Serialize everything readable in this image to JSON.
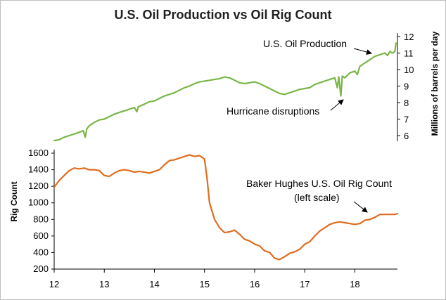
{
  "chart_data": {
    "type": "line",
    "title": "U.S. Oil Production vs Oil Rig Count",
    "x_ticks": [
      "12",
      "13",
      "14",
      "15",
      "16",
      "17",
      "18"
    ],
    "xlim": [
      2012,
      2018.85
    ],
    "left_axis": {
      "label": "Rig Count",
      "ylim": [
        200,
        1600
      ],
      "ticks": [
        "200",
        "400",
        "600",
        "800",
        "1000",
        "1200",
        "1400",
        "1600"
      ]
    },
    "right_axis": {
      "label": "Millions of barrels per day",
      "ylim": [
        5.5,
        12
      ],
      "ticks": [
        "6",
        "7",
        "8",
        "9",
        "10",
        "11",
        "12"
      ]
    },
    "series": [
      {
        "name": "U.S. Oil Production",
        "axis": "right",
        "color": "#7ab648",
        "x": [
          2012.0,
          2012.1,
          2012.2,
          2012.3,
          2012.4,
          2012.5,
          2012.58,
          2012.62,
          2012.65,
          2012.7,
          2012.8,
          2012.9,
          2013.0,
          2013.1,
          2013.2,
          2013.3,
          2013.4,
          2013.5,
          2013.6,
          2013.65,
          2013.68,
          2013.72,
          2013.8,
          2013.9,
          2014.0,
          2014.1,
          2014.2,
          2014.3,
          2014.4,
          2014.5,
          2014.6,
          2014.7,
          2014.8,
          2014.9,
          2015.0,
          2015.1,
          2015.2,
          2015.3,
          2015.4,
          2015.5,
          2015.6,
          2015.7,
          2015.8,
          2015.9,
          2016.0,
          2016.1,
          2016.2,
          2016.3,
          2016.4,
          2016.5,
          2016.6,
          2016.7,
          2016.8,
          2016.9,
          2017.0,
          2017.1,
          2017.2,
          2017.3,
          2017.4,
          2017.5,
          2017.6,
          2017.65,
          2017.68,
          2017.72,
          2017.75,
          2017.8,
          2017.9,
          2018.0,
          2018.05,
          2018.1,
          2018.2,
          2018.3,
          2018.4,
          2018.5,
          2018.6,
          2018.65,
          2018.7,
          2018.75,
          2018.8,
          2018.82
        ],
        "values": [
          5.7,
          5.75,
          5.9,
          6.0,
          6.1,
          6.2,
          6.3,
          5.9,
          6.4,
          6.6,
          6.8,
          6.95,
          7.0,
          7.15,
          7.3,
          7.4,
          7.5,
          7.6,
          7.7,
          7.45,
          7.75,
          7.8,
          7.9,
          8.05,
          8.1,
          8.25,
          8.4,
          8.5,
          8.6,
          8.75,
          8.9,
          9.0,
          9.15,
          9.25,
          9.3,
          9.35,
          9.4,
          9.45,
          9.55,
          9.5,
          9.35,
          9.2,
          9.15,
          9.2,
          9.25,
          9.15,
          9.0,
          8.85,
          8.7,
          8.55,
          8.5,
          8.6,
          8.7,
          8.8,
          8.85,
          8.9,
          9.1,
          9.2,
          9.3,
          9.4,
          9.5,
          8.9,
          9.55,
          8.4,
          9.6,
          9.5,
          9.8,
          9.9,
          9.7,
          10.2,
          10.4,
          10.6,
          10.8,
          10.9,
          11.0,
          10.85,
          11.1,
          11.0,
          11.1,
          11.6
        ]
      },
      {
        "name": "Baker Hughes U.S. Oil Rig Count (left scale)",
        "axis": "left",
        "color": "#e06c1f",
        "x": [
          2012.0,
          2012.1,
          2012.2,
          2012.3,
          2012.4,
          2012.5,
          2012.6,
          2012.7,
          2012.8,
          2012.9,
          2013.0,
          2013.1,
          2013.2,
          2013.3,
          2013.4,
          2013.5,
          2013.6,
          2013.7,
          2013.8,
          2013.9,
          2014.0,
          2014.1,
          2014.2,
          2014.3,
          2014.4,
          2014.5,
          2014.6,
          2014.7,
          2014.8,
          2014.9,
          2015.0,
          2015.05,
          2015.1,
          2015.15,
          2015.2,
          2015.3,
          2015.4,
          2015.5,
          2015.6,
          2015.7,
          2015.8,
          2015.9,
          2016.0,
          2016.1,
          2016.2,
          2016.3,
          2016.4,
          2016.5,
          2016.6,
          2016.7,
          2016.8,
          2016.9,
          2017.0,
          2017.1,
          2017.2,
          2017.3,
          2017.4,
          2017.5,
          2017.6,
          2017.7,
          2017.8,
          2017.9,
          2018.0,
          2018.1,
          2018.2,
          2018.3,
          2018.4,
          2018.5,
          2018.6,
          2018.7,
          2018.8,
          2018.85
        ],
        "values": [
          1190,
          1270,
          1330,
          1390,
          1420,
          1410,
          1420,
          1400,
          1400,
          1390,
          1330,
          1320,
          1360,
          1390,
          1400,
          1390,
          1370,
          1380,
          1370,
          1360,
          1380,
          1400,
          1460,
          1510,
          1520,
          1540,
          1560,
          1580,
          1560,
          1570,
          1530,
          1300,
          1000,
          900,
          800,
          700,
          640,
          650,
          670,
          620,
          560,
          540,
          500,
          480,
          420,
          400,
          330,
          316,
          350,
          390,
          410,
          440,
          500,
          530,
          600,
          660,
          700,
          740,
          760,
          770,
          760,
          750,
          740,
          750,
          790,
          800,
          825,
          860,
          860,
          860,
          860,
          870
        ]
      }
    ],
    "annotations": [
      {
        "text": "U.S. Oil Production"
      },
      {
        "text": "Hurricane disruptions"
      },
      {
        "text": "Baker Hughes U.S. Oil Rig Count"
      },
      {
        "text": "(left scale)"
      }
    ],
    "grid": false
  }
}
